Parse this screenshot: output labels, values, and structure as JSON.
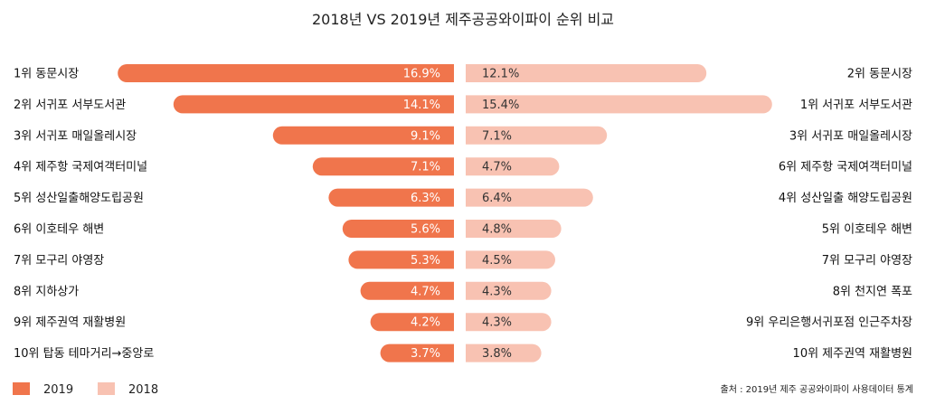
{
  "chart_data": {
    "type": "bar",
    "title": "2018년 VS 2019년 제주공공와이파이 순위 비교",
    "colors": {
      "2019": "#f0754c",
      "2018": "#f8c2b2"
    },
    "series": [
      {
        "name": "2019",
        "labels": [
          "1위 동문시장",
          "2위 서귀포 서부도서관",
          "3위 서귀포 매일올레시장",
          "4위 제주항 국제여객터미널",
          "5위 성산일출해양도립공원",
          "6위 이호테우 해변",
          "7위 모구리 야영장",
          "8위 지하상가",
          "9위 제주권역 재활병원",
          "10위 탑동 테마거리→중앙로"
        ],
        "values": [
          16.9,
          14.1,
          9.1,
          7.1,
          6.3,
          5.6,
          5.3,
          4.7,
          4.2,
          3.7
        ],
        "value_labels": [
          "16.9%",
          "14.1%",
          "9.1%",
          "7.1%",
          "6.3%",
          "5.6%",
          "5.3%",
          "4.7%",
          "4.2%",
          "3.7%"
        ]
      },
      {
        "name": "2018",
        "labels": [
          "2위 동문시장",
          "1위 서귀포 서부도서관",
          "3위 서귀포 매일올레시장",
          "6위 제주항 국제여객터미널",
          "4위 성산일출 해양도립공원",
          "5위 이호테우 해변",
          "7위 모구리 야영장",
          "8위 천지연 폭포",
          "9위 우리은행서귀포점 인근주차장",
          "10위 제주권역 재활병원"
        ],
        "values": [
          12.1,
          15.4,
          7.1,
          4.7,
          6.4,
          4.8,
          4.5,
          4.3,
          4.3,
          3.8
        ],
        "value_labels": [
          "12.1%",
          "15.4%",
          "7.1%",
          "4.7%",
          "6.4%",
          "4.8%",
          "4.5%",
          "4.3%",
          "4.3%",
          "3.8%"
        ]
      }
    ],
    "legend": [
      "2019",
      "2018"
    ],
    "legend_position": "bottom-left",
    "source": "출처 : 2019년 제주 공공와이파이 사용데이터 통계"
  }
}
